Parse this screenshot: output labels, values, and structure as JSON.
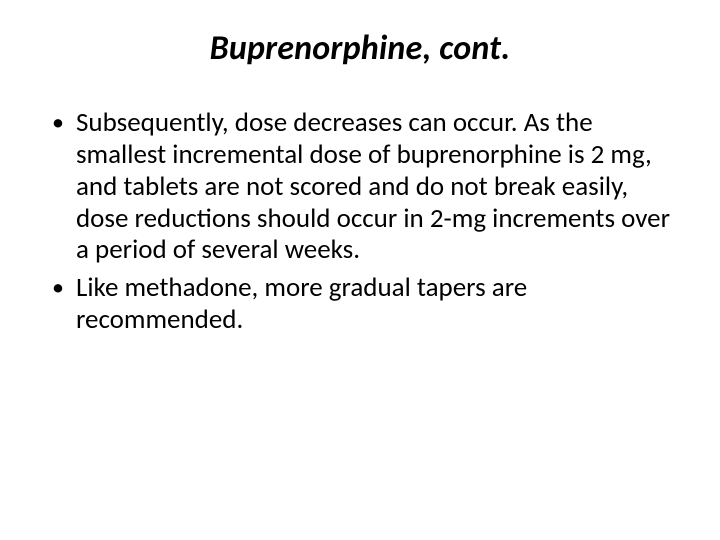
{
  "title": "Buprenorphine, cont.",
  "title_fontsize": 34,
  "title_fontweight": "bold",
  "title_fontstyle": "italic",
  "title_color": "#000000",
  "body_fontsize": 27,
  "body_color": "#000000",
  "background_color": "#ffffff",
  "bullets": [
    "Subsequently, dose decreases can occur. As the smallest incremental dose of buprenorphine is 2 mg, and tablets are not scored and do not break easily, dose reductions should occur in 2-mg increments over a period of several weeks.",
    "Like methadone, more gradual tapers are recommended."
  ]
}
